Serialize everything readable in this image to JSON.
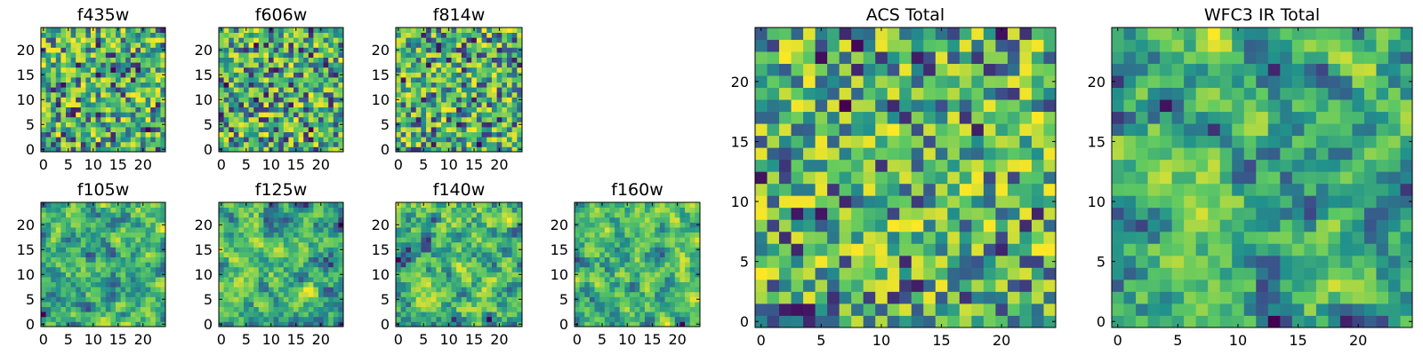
{
  "chart_data": [
    {
      "id": "f435w",
      "type": "heatmap",
      "title": "f435w",
      "grid_size": 25,
      "xlim": [
        0,
        24
      ],
      "ylim": [
        0,
        24
      ],
      "xticks": [
        0,
        5,
        10,
        15,
        20
      ],
      "yticks": [
        0,
        5,
        10,
        15,
        20
      ],
      "colormap": "viridis",
      "pattern": "noise",
      "seed": 11
    },
    {
      "id": "f606w",
      "type": "heatmap",
      "title": "f606w",
      "grid_size": 25,
      "xlim": [
        0,
        24
      ],
      "ylim": [
        0,
        24
      ],
      "xticks": [
        0,
        5,
        10,
        15,
        20
      ],
      "yticks": [
        0,
        5,
        10,
        15,
        20
      ],
      "colormap": "viridis",
      "pattern": "noise",
      "seed": 23
    },
    {
      "id": "f814w",
      "type": "heatmap",
      "title": "f814w",
      "grid_size": 25,
      "xlim": [
        0,
        24
      ],
      "ylim": [
        0,
        24
      ],
      "xticks": [
        0,
        5,
        10,
        15,
        20
      ],
      "yticks": [
        0,
        5,
        10,
        15,
        20
      ],
      "colormap": "viridis",
      "pattern": "noise",
      "seed": 37
    },
    {
      "id": "f105w",
      "type": "heatmap",
      "title": "f105w",
      "grid_size": 25,
      "xlim": [
        0,
        24
      ],
      "ylim": [
        0,
        24
      ],
      "xticks": [
        0,
        5,
        10,
        15,
        20
      ],
      "yticks": [
        0,
        5,
        10,
        15,
        20
      ],
      "colormap": "viridis",
      "pattern": "smooth",
      "seed": 41
    },
    {
      "id": "f125w",
      "type": "heatmap",
      "title": "f125w",
      "grid_size": 25,
      "xlim": [
        0,
        24
      ],
      "ylim": [
        0,
        24
      ],
      "xticks": [
        0,
        5,
        10,
        15,
        20
      ],
      "yticks": [
        0,
        5,
        10,
        15,
        20
      ],
      "colormap": "viridis",
      "pattern": "smooth",
      "seed": 53
    },
    {
      "id": "f140w",
      "type": "heatmap",
      "title": "f140w",
      "grid_size": 25,
      "xlim": [
        0,
        24
      ],
      "ylim": [
        0,
        24
      ],
      "xticks": [
        0,
        5,
        10,
        15,
        20
      ],
      "yticks": [
        0,
        5,
        10,
        15,
        20
      ],
      "colormap": "viridis",
      "pattern": "smooth",
      "seed": 67
    },
    {
      "id": "f160w",
      "type": "heatmap",
      "title": "f160w",
      "grid_size": 25,
      "xlim": [
        0,
        24
      ],
      "ylim": [
        0,
        24
      ],
      "xticks": [
        0,
        5,
        10,
        15,
        20
      ],
      "yticks": [
        0,
        5,
        10,
        15,
        20
      ],
      "colormap": "viridis",
      "pattern": "smooth",
      "seed": 79
    },
    {
      "id": "acs-total",
      "type": "heatmap",
      "title": "ACS Total",
      "grid_size": 25,
      "xlim": [
        0,
        24
      ],
      "ylim": [
        0,
        24
      ],
      "xticks": [
        0,
        5,
        10,
        15,
        20
      ],
      "yticks": [
        0,
        5,
        10,
        15,
        20
      ],
      "colormap": "viridis",
      "pattern": "noise",
      "seed": 97
    },
    {
      "id": "wfc3-total",
      "type": "heatmap",
      "title": "WFC3 IR Total",
      "grid_size": 25,
      "xlim": [
        0,
        24
      ],
      "ylim": [
        0,
        24
      ],
      "xticks": [
        0,
        5,
        10,
        15,
        20
      ],
      "yticks": [
        0,
        5,
        10,
        15,
        20
      ],
      "colormap": "viridis",
      "pattern": "smooth",
      "seed": 101
    }
  ],
  "colors": {
    "viridis": [
      "#440154",
      "#3b528b",
      "#21918c",
      "#5ec962",
      "#fde725"
    ]
  }
}
